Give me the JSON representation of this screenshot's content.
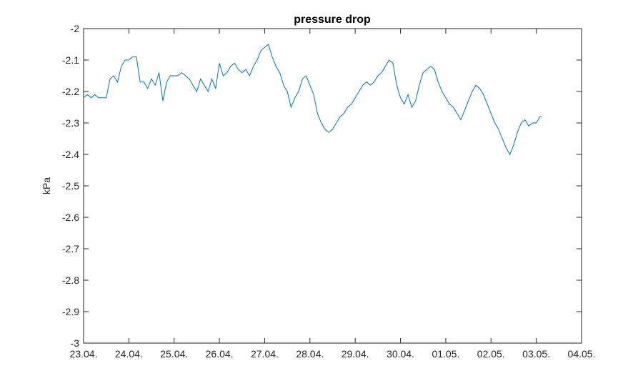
{
  "chart_data": {
    "type": "line",
    "title": "pressure drop",
    "xlabel": "",
    "ylabel": "kPa",
    "xlim": [
      "23.04.",
      "04.05."
    ],
    "ylim": [
      -3,
      -2
    ],
    "x_ticks": [
      "23.04.",
      "24.04.",
      "25.04.",
      "26.04.",
      "27.04.",
      "28.04.",
      "29.04.",
      "30.04.",
      "01.05.",
      "02.05.",
      "03.05.",
      "04.05."
    ],
    "y_ticks": [
      "-3",
      "-2.9",
      "-2.8",
      "-2.7",
      "-2.6",
      "-2.5",
      "-2.4",
      "-2.3",
      "-2.2",
      "-2.1",
      "-2"
    ],
    "y_tick_values": [
      -3,
      -2.9,
      -2.8,
      -2.7,
      -2.6,
      -2.5,
      -2.4,
      -2.3,
      -2.2,
      -2.1,
      -2
    ],
    "grid": false,
    "series": [
      {
        "color": "#0072bd",
        "x": [
          "23.04. 00:00",
          "23.04. 02:00",
          "23.04. 04:00",
          "23.04. 06:00",
          "23.04. 08:00",
          "23.04. 10:00",
          "23.04. 12:00",
          "23.04. 14:00",
          "23.04. 16:00",
          "23.04. 18:00",
          "23.04. 20:00",
          "23.04. 22:00",
          "24.04. 00:00",
          "24.04. 02:00",
          "24.04. 04:00",
          "24.04. 06:00",
          "24.04. 08:00",
          "24.04. 10:00",
          "24.04. 12:00",
          "24.04. 14:00",
          "24.04. 16:00",
          "24.04. 18:00",
          "24.04. 20:00",
          "24.04. 22:00",
          "25.04. 00:00",
          "25.04. 02:00",
          "25.04. 04:00",
          "25.04. 06:00",
          "25.04. 08:00",
          "25.04. 10:00",
          "25.04. 12:00",
          "25.04. 14:00",
          "25.04. 16:00",
          "25.04. 18:00",
          "25.04. 20:00",
          "25.04. 22:00",
          "26.04. 00:00",
          "26.04. 02:00",
          "26.04. 04:00",
          "26.04. 06:00",
          "26.04. 08:00",
          "26.04. 10:00",
          "26.04. 12:00",
          "26.04. 14:00",
          "26.04. 16:00",
          "26.04. 18:00",
          "26.04. 20:00",
          "26.04. 22:00",
          "27.04. 00:00",
          "27.04. 02:00",
          "27.04. 04:00",
          "27.04. 06:00",
          "27.04. 08:00",
          "27.04. 10:00",
          "27.04. 12:00",
          "27.04. 14:00",
          "27.04. 16:00",
          "27.04. 18:00",
          "27.04. 20:00",
          "27.04. 22:00",
          "28.04. 00:00",
          "28.04. 02:00",
          "28.04. 04:00",
          "28.04. 06:00",
          "28.04. 08:00",
          "28.04. 10:00",
          "28.04. 12:00",
          "28.04. 14:00",
          "28.04. 16:00",
          "28.04. 18:00",
          "28.04. 20:00",
          "28.04. 22:00",
          "29.04. 00:00",
          "29.04. 02:00",
          "29.04. 04:00",
          "29.04. 06:00",
          "29.04. 08:00",
          "29.04. 10:00",
          "29.04. 12:00",
          "29.04. 14:00",
          "29.04. 16:00",
          "29.04. 18:00",
          "29.04. 20:00",
          "29.04. 22:00",
          "30.04. 00:00",
          "30.04. 02:00",
          "30.04. 04:00",
          "30.04. 06:00",
          "30.04. 08:00",
          "30.04. 10:00",
          "30.04. 12:00",
          "30.04. 14:00",
          "30.04. 16:00",
          "30.04. 18:00",
          "30.04. 20:00",
          "30.04. 22:00",
          "01.05. 00:00",
          "01.05. 02:00",
          "01.05. 04:00",
          "01.05. 06:00",
          "01.05. 08:00",
          "01.05. 10:00",
          "01.05. 12:00",
          "01.05. 14:00",
          "01.05. 16:00",
          "01.05. 18:00",
          "01.05. 20:00",
          "01.05. 22:00",
          "02.05. 00:00",
          "02.05. 02:00",
          "02.05. 04:00",
          "02.05. 06:00",
          "02.05. 08:00",
          "02.05. 10:00",
          "02.05. 12:00",
          "02.05. 14:00",
          "02.05. 16:00",
          "02.05. 18:00",
          "02.05. 20:00",
          "02.05. 22:00",
          "03.05. 00:00",
          "03.05. 02:00",
          "03.05. 03:00"
        ],
        "y": [
          -2.22,
          -2.21,
          -2.22,
          -2.21,
          -2.22,
          -2.22,
          -2.22,
          -2.16,
          -2.15,
          -2.17,
          -2.12,
          -2.1,
          -2.1,
          -2.09,
          -2.09,
          -2.17,
          -2.17,
          -2.19,
          -2.16,
          -2.18,
          -2.14,
          -2.23,
          -2.17,
          -2.15,
          -2.15,
          -2.15,
          -2.14,
          -2.15,
          -2.16,
          -2.18,
          -2.2,
          -2.16,
          -2.18,
          -2.2,
          -2.16,
          -2.19,
          -2.11,
          -2.15,
          -2.14,
          -2.12,
          -2.11,
          -2.13,
          -2.14,
          -2.13,
          -2.15,
          -2.12,
          -2.1,
          -2.07,
          -2.06,
          -2.05,
          -2.09,
          -2.12,
          -2.14,
          -2.18,
          -2.2,
          -2.25,
          -2.22,
          -2.2,
          -2.16,
          -2.15,
          -2.18,
          -2.21,
          -2.27,
          -2.3,
          -2.32,
          -2.33,
          -2.32,
          -2.3,
          -2.28,
          -2.27,
          -2.25,
          -2.24,
          -2.22,
          -2.2,
          -2.18,
          -2.17,
          -2.18,
          -2.17,
          -2.15,
          -2.14,
          -2.12,
          -2.1,
          -2.11,
          -2.18,
          -2.22,
          -2.24,
          -2.21,
          -2.25,
          -2.23,
          -2.18,
          -2.14,
          -2.13,
          -2.12,
          -2.13,
          -2.17,
          -2.2,
          -2.22,
          -2.24,
          -2.25,
          -2.27,
          -2.29,
          -2.26,
          -2.23,
          -2.2,
          -2.18,
          -2.19,
          -2.21,
          -2.24,
          -2.27,
          -2.3,
          -2.32,
          -2.35,
          -2.38,
          -2.4,
          -2.37,
          -2.33,
          -2.3,
          -2.29,
          -2.31,
          -2.3,
          -2.3,
          -2.28,
          -2.28
        ]
      }
    ]
  }
}
